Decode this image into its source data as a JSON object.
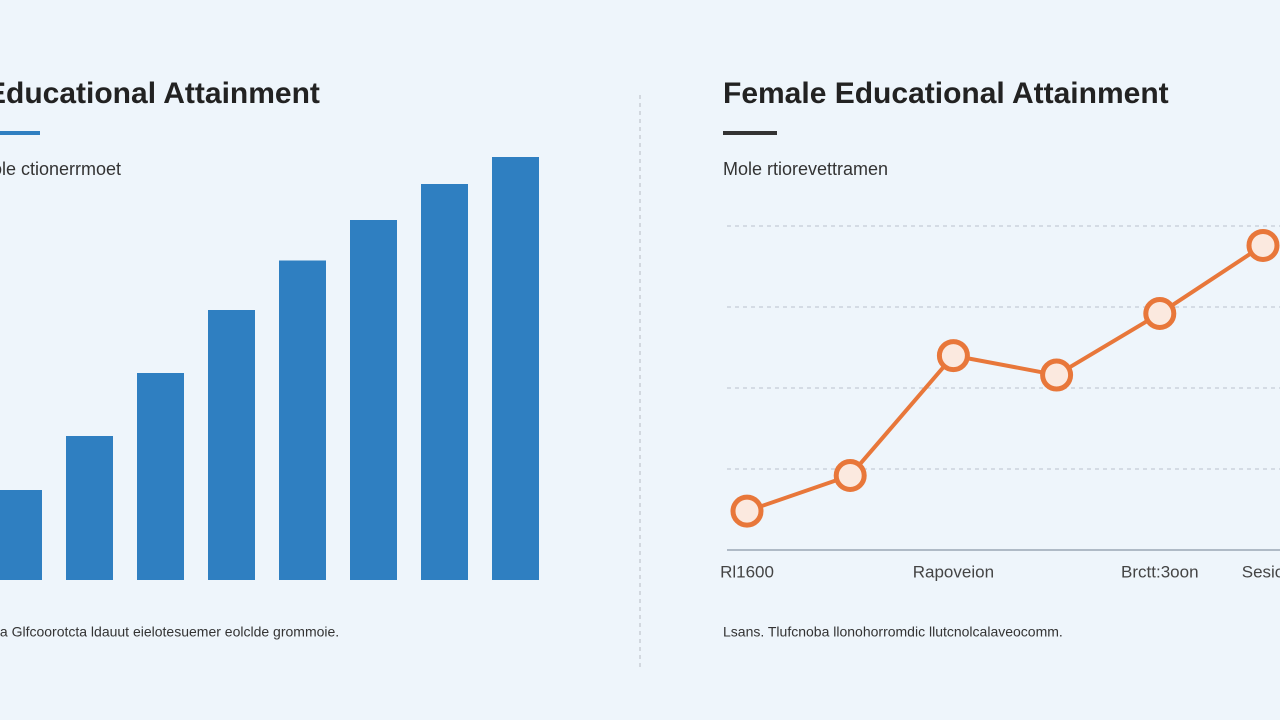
{
  "chart_data": [
    {
      "type": "bar",
      "title": "Educational Attainment",
      "subtitle": "ole  ctionerrmoet",
      "footnote": "ta Glfcoorotcta ldauut eielotesuemer eolclde grommoie.",
      "values": [
        20,
        32,
        46,
        60,
        71,
        80,
        88,
        94
      ],
      "color": "#2f7fc1",
      "ylim": [
        0,
        100
      ]
    },
    {
      "type": "line",
      "title": "Female Educational Attainment",
      "subtitle": "Mole  rtiorevettramen",
      "footnote": "Lsans. Tlufcnoba llonohorromdic llutcnolcalaveocomm.",
      "categories": [
        "Rl1600",
        null,
        "Rapoveion",
        null,
        "Brctt:3oon",
        "Sesio"
      ],
      "values": [
        12,
        23,
        60,
        54,
        73,
        94
      ],
      "color": "#e8773a",
      "ylim": [
        0,
        100
      ],
      "yticks": [
        25,
        50,
        75,
        100
      ],
      "grid": true
    }
  ]
}
